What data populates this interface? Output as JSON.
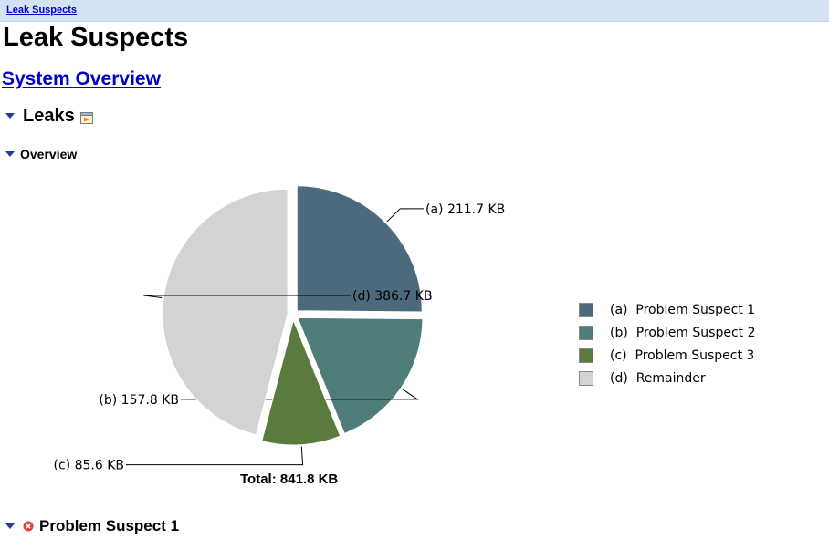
{
  "breadcrumb": {
    "label": "Leak Suspects"
  },
  "page": {
    "title": "Leak Suspects",
    "overview_link": "System Overview"
  },
  "sections": {
    "leaks": "Leaks",
    "overview": "Overview",
    "problem_suspect": "Problem Suspect 1"
  },
  "total_label": "Total: 841.8 KB",
  "legend": [
    {
      "label": "(a)  Problem Suspect 1",
      "color": "#4d6a7c"
    },
    {
      "label": "(b)  Problem Suspect 2",
      "color": "#4f7d7a"
    },
    {
      "label": "(c)  Problem Suspect 3",
      "color": "#5b7a3e"
    },
    {
      "label": "(d)  Remainder",
      "color": "#d3d3d3"
    }
  ],
  "colors": {
    "link": "#0000cc",
    "breadcrumb_bg": "#d3e3f2",
    "error_icon": "#d9403a",
    "triangle": "#1f3f99"
  },
  "chart_data": {
    "type": "pie",
    "unit": "KB",
    "total": 841.8,
    "slices": [
      {
        "key": "a",
        "name": "Problem Suspect 1",
        "value": 211.7,
        "label": "(a)  211.7 KB",
        "color": "#4d6a7c"
      },
      {
        "key": "b",
        "name": "Problem Suspect 2",
        "value": 157.8,
        "label": "(b)  157.8 KB",
        "color": "#4f7d7a"
      },
      {
        "key": "c",
        "name": "Problem Suspect 3",
        "value": 85.6,
        "label": "(c)  85.6 KB",
        "color": "#5b7a3e"
      },
      {
        "key": "d",
        "name": "Remainder",
        "value": 386.7,
        "label": "(d)  386.7 KB",
        "color": "#d3d3d3"
      }
    ],
    "start_angle_deg": 0,
    "direction": "clockwise",
    "exploded": true,
    "legend_position": "right"
  }
}
